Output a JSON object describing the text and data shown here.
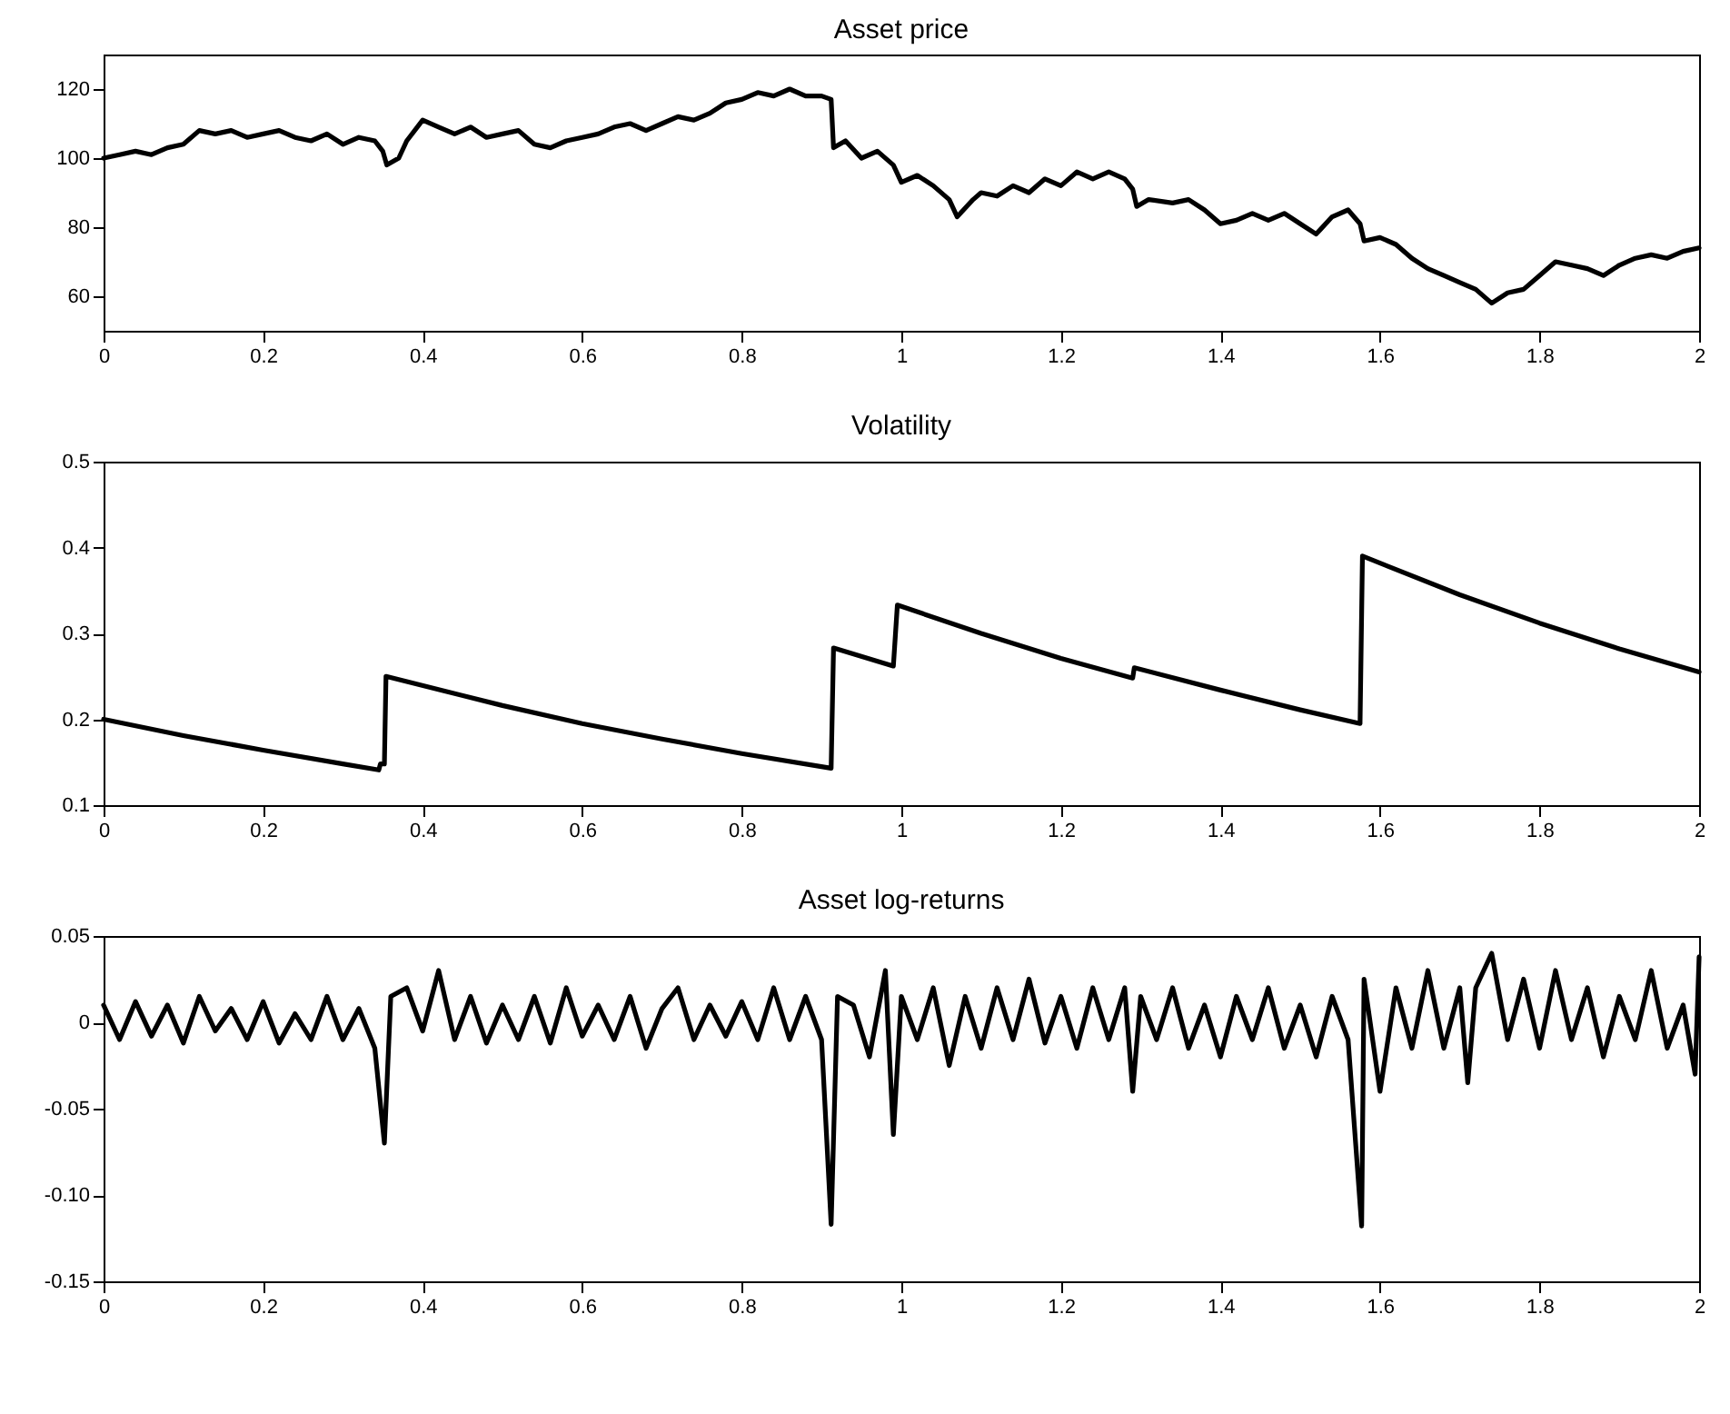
{
  "chart_data": [
    {
      "type": "line",
      "title": "Asset price",
      "xlim": [
        0,
        2
      ],
      "xticks": [
        0,
        0.2,
        0.4,
        0.6,
        0.8,
        1,
        1.2,
        1.4,
        1.6,
        1.8,
        2
      ],
      "ylim": [
        50,
        130
      ],
      "yticks": [
        60,
        80,
        100,
        120
      ],
      "line_style": "solid",
      "marker": "none",
      "series": [
        {
          "color": "#000000",
          "x": [
            0,
            0.02,
            0.04,
            0.06,
            0.08,
            0.1,
            0.12,
            0.14,
            0.16,
            0.18,
            0.2,
            0.22,
            0.24,
            0.26,
            0.28,
            0.3,
            0.32,
            0.34,
            0.35,
            0.355,
            0.37,
            0.38,
            0.4,
            0.42,
            0.44,
            0.46,
            0.48,
            0.5,
            0.52,
            0.54,
            0.56,
            0.58,
            0.6,
            0.62,
            0.64,
            0.66,
            0.68,
            0.7,
            0.72,
            0.74,
            0.76,
            0.78,
            0.8,
            0.82,
            0.84,
            0.86,
            0.88,
            0.9,
            0.912,
            0.915,
            0.93,
            0.95,
            0.97,
            0.99,
            1,
            1.02,
            1.04,
            1.06,
            1.07,
            1.09,
            1.1,
            1.12,
            1.14,
            1.16,
            1.18,
            1.2,
            1.22,
            1.24,
            1.26,
            1.28,
            1.29,
            1.295,
            1.31,
            1.34,
            1.36,
            1.38,
            1.4,
            1.42,
            1.44,
            1.46,
            1.48,
            1.5,
            1.52,
            1.54,
            1.56,
            1.575,
            1.58,
            1.6,
            1.62,
            1.64,
            1.66,
            1.68,
            1.7,
            1.72,
            1.74,
            1.76,
            1.78,
            1.8,
            1.82,
            1.84,
            1.86,
            1.88,
            1.9,
            1.92,
            1.94,
            1.96,
            1.98,
            2
          ],
          "values": [
            100,
            101,
            102,
            101,
            103,
            104,
            108,
            107,
            108,
            106,
            107,
            108,
            106,
            105,
            107,
            104,
            106,
            105,
            102,
            98,
            100,
            105,
            111,
            109,
            107,
            109,
            106,
            107,
            108,
            104,
            103,
            105,
            106,
            107,
            109,
            110,
            108,
            110,
            112,
            111,
            113,
            116,
            117,
            119,
            118,
            120,
            118,
            118,
            117,
            103,
            105,
            100,
            102,
            98,
            93,
            95,
            92,
            88,
            83,
            88,
            90,
            89,
            92,
            90,
            94,
            92,
            96,
            94,
            96,
            94,
            91,
            86,
            88,
            87,
            88,
            85,
            81,
            82,
            84,
            82,
            84,
            81,
            78,
            83,
            85,
            81,
            76,
            77,
            75,
            71,
            68,
            66,
            64,
            62,
            58,
            61,
            62,
            66,
            70,
            69,
            68,
            66,
            69,
            71,
            72,
            71,
            73,
            74
          ]
        }
      ]
    },
    {
      "type": "line",
      "title": "Volatility",
      "xlim": [
        0,
        2
      ],
      "xticks": [
        0,
        0.2,
        0.4,
        0.6,
        0.8,
        1,
        1.2,
        1.4,
        1.6,
        1.8,
        2
      ],
      "ylim": [
        0.1,
        0.5
      ],
      "yticks": [
        0.1,
        0.2,
        0.3,
        0.4,
        0.5
      ],
      "line_style": "solid",
      "marker": "none",
      "series": [
        {
          "color": "#000000",
          "x": [
            0,
            0.1,
            0.2,
            0.3,
            0.345,
            0.347,
            0.352,
            0.354,
            0.5,
            0.6,
            0.7,
            0.8,
            0.912,
            0.915,
            0.99,
            0.995,
            1.1,
            1.2,
            1.29,
            1.292,
            1.4,
            1.5,
            1.575,
            1.578,
            1.7,
            1.8,
            1.9,
            2
          ],
          "values": [
            0.2,
            0.181,
            0.164,
            0.148,
            0.141,
            0.148,
            0.148,
            0.25,
            0.216,
            0.195,
            0.177,
            0.16,
            0.143,
            0.283,
            0.262,
            0.333,
            0.3,
            0.271,
            0.248,
            0.26,
            0.234,
            0.211,
            0.195,
            0.39,
            0.345,
            0.312,
            0.282,
            0.255
          ]
        }
      ]
    },
    {
      "type": "line",
      "title": "Asset log-returns",
      "xlim": [
        0,
        2
      ],
      "xticks": [
        0,
        0.2,
        0.4,
        0.6,
        0.8,
        1,
        1.2,
        1.4,
        1.6,
        1.8,
        2
      ],
      "ylim": [
        -0.15,
        0.05
      ],
      "yticks": [
        -0.15,
        {
          "value": -0.1,
          "label": "-0.10"
        },
        -0.05,
        0,
        0.05
      ],
      "line_style": "solid",
      "marker": "none",
      "series": [
        {
          "color": "#000000",
          "x": [
            0,
            0.02,
            0.04,
            0.06,
            0.08,
            0.1,
            0.12,
            0.14,
            0.16,
            0.18,
            0.2,
            0.22,
            0.24,
            0.26,
            0.28,
            0.3,
            0.32,
            0.34,
            0.352,
            0.36,
            0.38,
            0.4,
            0.42,
            0.44,
            0.46,
            0.48,
            0.5,
            0.52,
            0.54,
            0.56,
            0.58,
            0.6,
            0.62,
            0.64,
            0.66,
            0.68,
            0.7,
            0.72,
            0.74,
            0.76,
            0.78,
            0.8,
            0.82,
            0.84,
            0.86,
            0.88,
            0.9,
            0.912,
            0.92,
            0.94,
            0.96,
            0.98,
            0.99,
            1,
            1.02,
            1.04,
            1.06,
            1.08,
            1.1,
            1.12,
            1.14,
            1.16,
            1.18,
            1.2,
            1.22,
            1.24,
            1.26,
            1.28,
            1.29,
            1.3,
            1.32,
            1.34,
            1.36,
            1.38,
            1.4,
            1.42,
            1.44,
            1.46,
            1.48,
            1.5,
            1.52,
            1.54,
            1.56,
            1.577,
            1.58,
            1.6,
            1.62,
            1.64,
            1.66,
            1.68,
            1.7,
            1.71,
            1.72,
            1.74,
            1.76,
            1.78,
            1.8,
            1.82,
            1.84,
            1.86,
            1.88,
            1.9,
            1.92,
            1.94,
            1.96,
            1.98,
            1.995,
            2
          ],
          "values": [
            0.01,
            -0.01,
            0.012,
            -0.008,
            0.01,
            -0.012,
            0.015,
            -0.005,
            0.008,
            -0.01,
            0.012,
            -0.012,
            0.005,
            -0.01,
            0.015,
            -0.01,
            0.008,
            -0.015,
            -0.07,
            0.015,
            0.02,
            -0.005,
            0.03,
            -0.01,
            0.015,
            -0.012,
            0.01,
            -0.01,
            0.015,
            -0.012,
            0.02,
            -0.008,
            0.01,
            -0.01,
            0.015,
            -0.015,
            0.008,
            0.02,
            -0.01,
            0.01,
            -0.008,
            0.012,
            -0.01,
            0.02,
            -0.01,
            0.015,
            -0.01,
            -0.117,
            0.015,
            0.01,
            -0.02,
            0.03,
            -0.065,
            0.015,
            -0.01,
            0.02,
            -0.025,
            0.015,
            -0.015,
            0.02,
            -0.01,
            0.025,
            -0.012,
            0.015,
            -0.015,
            0.02,
            -0.01,
            0.02,
            -0.04,
            0.015,
            -0.01,
            0.02,
            -0.015,
            0.01,
            -0.02,
            0.015,
            -0.01,
            0.02,
            -0.015,
            0.01,
            -0.02,
            0.015,
            -0.01,
            -0.118,
            0.025,
            -0.04,
            0.02,
            -0.015,
            0.03,
            -0.015,
            0.02,
            -0.035,
            0.02,
            0.04,
            -0.01,
            0.025,
            -0.015,
            0.03,
            -0.01,
            0.02,
            -0.02,
            0.015,
            -0.01,
            0.03,
            -0.015,
            0.01,
            -0.03,
            0.038
          ]
        }
      ]
    }
  ]
}
